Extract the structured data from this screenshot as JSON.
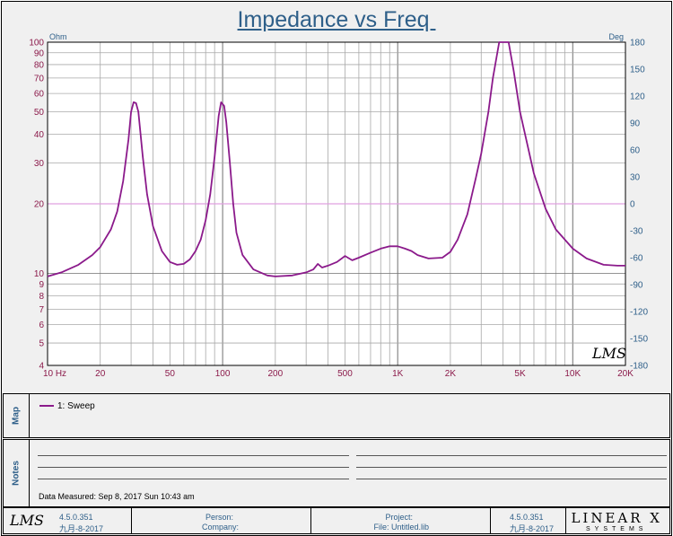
{
  "title": "Impedance vs Freq ",
  "chart_data": {
    "type": "line",
    "title": "Impedance vs Freq",
    "x_scale": "log",
    "y_scale": "log",
    "xlim": [
      10,
      20000
    ],
    "ylim": [
      4,
      100
    ],
    "y2lim": [
      -180,
      180
    ],
    "left_unit": "Ohm",
    "right_unit": "Deg",
    "x_ticks": [
      {
        "v": 10,
        "label": "10  Hz"
      },
      {
        "v": 20,
        "label": "20"
      },
      {
        "v": 50,
        "label": "50"
      },
      {
        "v": 100,
        "label": "100"
      },
      {
        "v": 200,
        "label": "200"
      },
      {
        "v": 500,
        "label": "500"
      },
      {
        "v": 1000,
        "label": "1K"
      },
      {
        "v": 2000,
        "label": "2K"
      },
      {
        "v": 5000,
        "label": "5K"
      },
      {
        "v": 10000,
        "label": "10K"
      },
      {
        "v": 20000,
        "label": "20K"
      }
    ],
    "y_ticks": [
      {
        "v": 100,
        "label": "100"
      },
      {
        "v": 90,
        "label": "90"
      },
      {
        "v": 80,
        "label": "80"
      },
      {
        "v": 70,
        "label": "70"
      },
      {
        "v": 60,
        "label": "60"
      },
      {
        "v": 50,
        "label": "50"
      },
      {
        "v": 40,
        "label": "40"
      },
      {
        "v": 30,
        "label": "30"
      },
      {
        "v": 20,
        "label": "20"
      },
      {
        "v": 10,
        "label": "10"
      },
      {
        "v": 9,
        "label": "9"
      },
      {
        "v": 8,
        "label": "8"
      },
      {
        "v": 7,
        "label": "7"
      },
      {
        "v": 6,
        "label": "6"
      },
      {
        "v": 5,
        "label": "5"
      },
      {
        "v": 4,
        "label": "4"
      }
    ],
    "y2_ticks": [
      180,
      150,
      120,
      90,
      60,
      30,
      0,
      -30,
      -60,
      -90,
      -120,
      -150,
      -180
    ],
    "highlight_y": 20,
    "series": [
      {
        "name": "1: Sweep",
        "color": "#8b1a8b",
        "points": [
          [
            10,
            9.7
          ],
          [
            12,
            10.1
          ],
          [
            15,
            10.9
          ],
          [
            18,
            12.0
          ],
          [
            20,
            13.0
          ],
          [
            23,
            15.5
          ],
          [
            25,
            18.5
          ],
          [
            27,
            25.0
          ],
          [
            29,
            38.0
          ],
          [
            30,
            50.0
          ],
          [
            31,
            55.0
          ],
          [
            32,
            54.5
          ],
          [
            33,
            50.0
          ],
          [
            35,
            32.0
          ],
          [
            37,
            22.0
          ],
          [
            40,
            16.0
          ],
          [
            45,
            12.5
          ],
          [
            50,
            11.2
          ],
          [
            55,
            10.9
          ],
          [
            60,
            11.0
          ],
          [
            65,
            11.5
          ],
          [
            70,
            12.5
          ],
          [
            75,
            14.0
          ],
          [
            80,
            17.0
          ],
          [
            85,
            22.0
          ],
          [
            90,
            32.0
          ],
          [
            95,
            48.0
          ],
          [
            98,
            55.0
          ],
          [
            102,
            53.0
          ],
          [
            105,
            45.0
          ],
          [
            110,
            30.0
          ],
          [
            115,
            20.0
          ],
          [
            120,
            15.0
          ],
          [
            130,
            12.0
          ],
          [
            150,
            10.4
          ],
          [
            180,
            9.8
          ],
          [
            200,
            9.7
          ],
          [
            250,
            9.8
          ],
          [
            300,
            10.1
          ],
          [
            330,
            10.4
          ],
          [
            350,
            11.0
          ],
          [
            370,
            10.6
          ],
          [
            400,
            10.8
          ],
          [
            450,
            11.2
          ],
          [
            500,
            11.9
          ],
          [
            550,
            11.4
          ],
          [
            600,
            11.7
          ],
          [
            700,
            12.3
          ],
          [
            800,
            12.8
          ],
          [
            900,
            13.1
          ],
          [
            1000,
            13.1
          ],
          [
            1100,
            12.8
          ],
          [
            1200,
            12.5
          ],
          [
            1300,
            12.0
          ],
          [
            1500,
            11.6
          ],
          [
            1800,
            11.7
          ],
          [
            2000,
            12.4
          ],
          [
            2200,
            14.0
          ],
          [
            2500,
            18.0
          ],
          [
            2800,
            26.0
          ],
          [
            3000,
            33.0
          ],
          [
            3300,
            50.0
          ],
          [
            3500,
            70.0
          ],
          [
            3800,
            100
          ],
          [
            4300,
            100
          ],
          [
            4600,
            75.0
          ],
          [
            5000,
            50.0
          ],
          [
            6000,
            27.0
          ],
          [
            7000,
            19.0
          ],
          [
            8000,
            15.5
          ],
          [
            10000,
            12.8
          ],
          [
            12000,
            11.6
          ],
          [
            15000,
            10.9
          ],
          [
            18000,
            10.8
          ],
          [
            20000,
            10.8
          ]
        ]
      }
    ]
  },
  "map": {
    "label": "Map",
    "legend": [
      {
        "name": "1: Sweep",
        "color": "#8b1a8b"
      }
    ]
  },
  "notes": {
    "label": "Notes",
    "measured": "Data Measured: Sep 8, 2017 Sun 10:43 am"
  },
  "footer": {
    "logo_left": "LMS",
    "version_left": "4.5.0.351",
    "date_left": "九月-8-2017",
    "person_label": "Person:",
    "company_label": "Company:",
    "project_label": "Project:",
    "file_label": "File: Untitled.lib",
    "version_right": "4.5.0.351",
    "date_right": "九月-8-2017",
    "brand_line1": "LINEAR X",
    "brand_line2": "SYSTEMS"
  },
  "watermark": "LMS"
}
